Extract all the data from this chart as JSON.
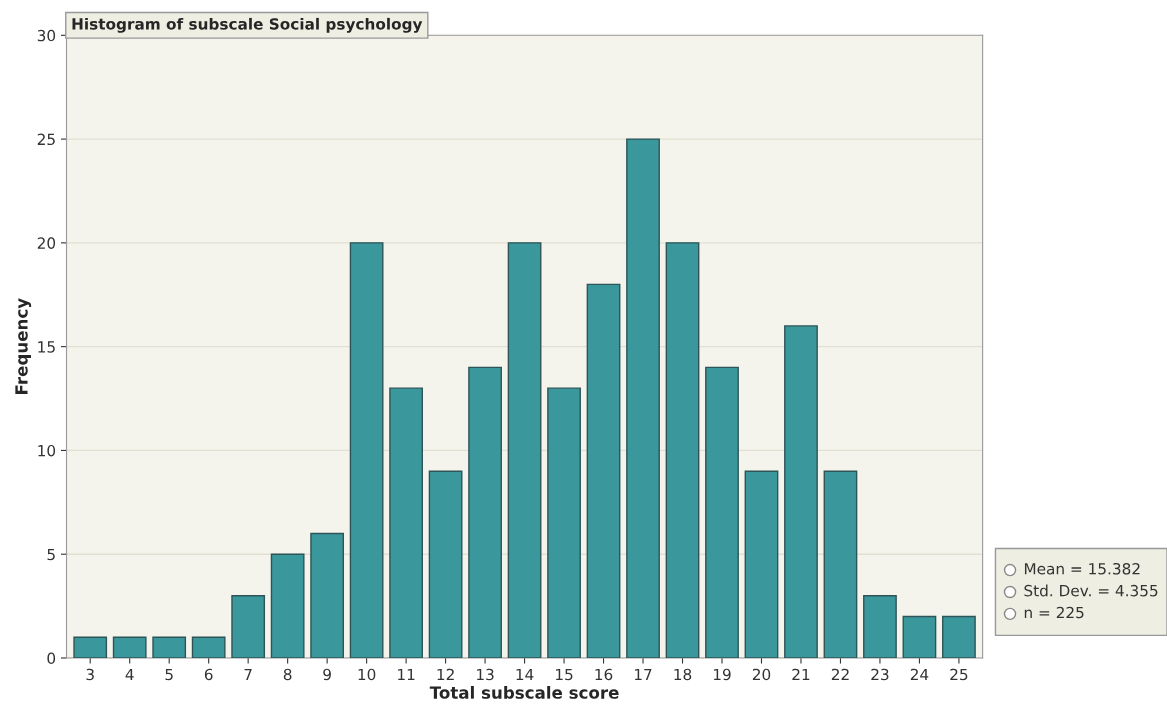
{
  "chart_data": {
    "type": "bar",
    "title": "Histogram of subscale Social psychology",
    "xlabel": "Total subscale score",
    "ylabel": "Frequency",
    "categories": [
      "3",
      "4",
      "5",
      "6",
      "7",
      "8",
      "9",
      "10",
      "11",
      "12",
      "13",
      "14",
      "15",
      "16",
      "17",
      "18",
      "19",
      "20",
      "21",
      "22",
      "23",
      "24",
      "25"
    ],
    "values": [
      1,
      1,
      1,
      1,
      3,
      5,
      6,
      20,
      13,
      9,
      14,
      20,
      13,
      18,
      25,
      20,
      14,
      9,
      16,
      9,
      3,
      2,
      2
    ],
    "color": "#3a979c",
    "ylim": [
      0,
      30
    ],
    "yticks": [
      0,
      5,
      10,
      15,
      20,
      25,
      30
    ],
    "grid": "y",
    "annotations": [
      "Mean = 15.382",
      "Std. Dev. = 4.355",
      "n = 225"
    ]
  }
}
